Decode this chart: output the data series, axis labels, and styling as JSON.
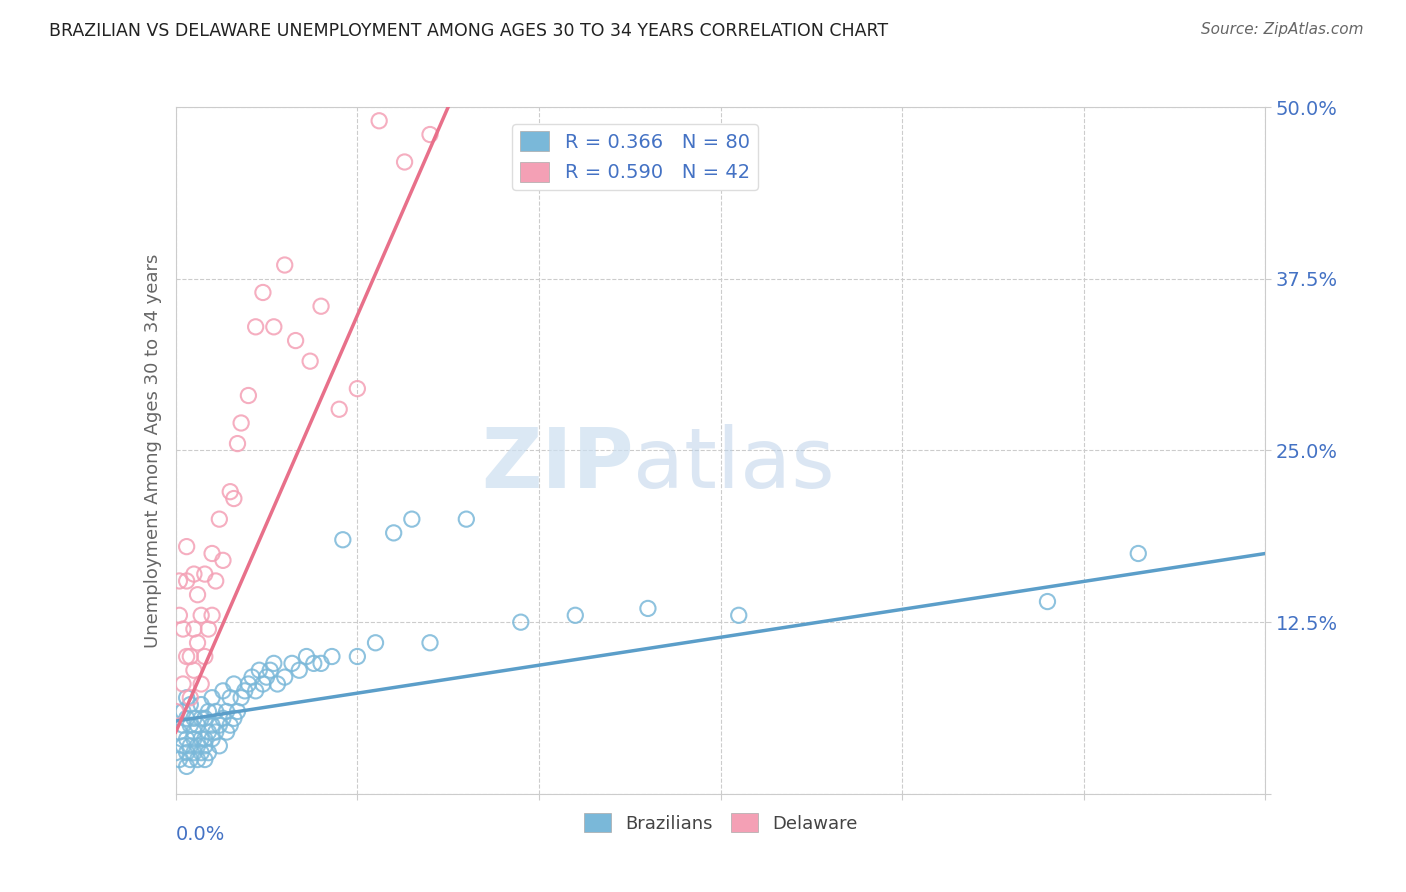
{
  "title": "BRAZILIAN VS DELAWARE UNEMPLOYMENT AMONG AGES 30 TO 34 YEARS CORRELATION CHART",
  "source": "Source: ZipAtlas.com",
  "ylabel_label": "Unemployment Among Ages 30 to 34 years",
  "legend_r1": "R = 0.366",
  "legend_n1": "N = 80",
  "legend_r2": "R = 0.590",
  "legend_n2": "N = 42",
  "watermark_zip": "ZIP",
  "watermark_atlas": "atlas",
  "color_blue": "#7ab8d9",
  "color_pink": "#f4a0b5",
  "color_blue_line": "#5b9ec9",
  "color_pink_line": "#e8708a",
  "xlim": [
    0.0,
    0.3
  ],
  "ylim": [
    0.0,
    0.5
  ],
  "blue_x": [
    0.0,
    0.001,
    0.001,
    0.002,
    0.002,
    0.002,
    0.003,
    0.003,
    0.003,
    0.003,
    0.003,
    0.004,
    0.004,
    0.004,
    0.004,
    0.005,
    0.005,
    0.005,
    0.005,
    0.006,
    0.006,
    0.006,
    0.007,
    0.007,
    0.007,
    0.007,
    0.008,
    0.008,
    0.008,
    0.008,
    0.009,
    0.009,
    0.009,
    0.01,
    0.01,
    0.01,
    0.011,
    0.011,
    0.012,
    0.012,
    0.013,
    0.013,
    0.014,
    0.014,
    0.015,
    0.015,
    0.016,
    0.016,
    0.017,
    0.018,
    0.019,
    0.02,
    0.021,
    0.022,
    0.023,
    0.024,
    0.025,
    0.026,
    0.027,
    0.028,
    0.03,
    0.032,
    0.034,
    0.036,
    0.038,
    0.04,
    0.043,
    0.046,
    0.05,
    0.055,
    0.06,
    0.065,
    0.07,
    0.08,
    0.095,
    0.11,
    0.13,
    0.155,
    0.24,
    0.265
  ],
  "blue_y": [
    0.03,
    0.025,
    0.045,
    0.035,
    0.05,
    0.06,
    0.03,
    0.04,
    0.055,
    0.07,
    0.02,
    0.035,
    0.05,
    0.065,
    0.025,
    0.04,
    0.055,
    0.03,
    0.045,
    0.035,
    0.05,
    0.025,
    0.04,
    0.055,
    0.03,
    0.065,
    0.04,
    0.025,
    0.055,
    0.035,
    0.045,
    0.06,
    0.03,
    0.05,
    0.04,
    0.07,
    0.045,
    0.06,
    0.05,
    0.035,
    0.055,
    0.075,
    0.045,
    0.06,
    0.05,
    0.07,
    0.055,
    0.08,
    0.06,
    0.07,
    0.075,
    0.08,
    0.085,
    0.075,
    0.09,
    0.08,
    0.085,
    0.09,
    0.095,
    0.08,
    0.085,
    0.095,
    0.09,
    0.1,
    0.095,
    0.095,
    0.1,
    0.185,
    0.1,
    0.11,
    0.19,
    0.2,
    0.11,
    0.2,
    0.125,
    0.13,
    0.135,
    0.13,
    0.14,
    0.175
  ],
  "pink_x": [
    0.0,
    0.001,
    0.001,
    0.002,
    0.002,
    0.003,
    0.003,
    0.003,
    0.004,
    0.004,
    0.005,
    0.005,
    0.005,
    0.006,
    0.006,
    0.007,
    0.007,
    0.008,
    0.008,
    0.009,
    0.01,
    0.01,
    0.011,
    0.012,
    0.013,
    0.015,
    0.016,
    0.017,
    0.018,
    0.02,
    0.022,
    0.024,
    0.027,
    0.03,
    0.033,
    0.037,
    0.04,
    0.045,
    0.05,
    0.056,
    0.063,
    0.07
  ],
  "pink_y": [
    0.06,
    0.13,
    0.155,
    0.08,
    0.12,
    0.1,
    0.155,
    0.18,
    0.07,
    0.1,
    0.09,
    0.12,
    0.16,
    0.11,
    0.145,
    0.08,
    0.13,
    0.1,
    0.16,
    0.12,
    0.13,
    0.175,
    0.155,
    0.2,
    0.17,
    0.22,
    0.215,
    0.255,
    0.27,
    0.29,
    0.34,
    0.365,
    0.34,
    0.385,
    0.33,
    0.315,
    0.355,
    0.28,
    0.295,
    0.49,
    0.46,
    0.48
  ],
  "pink_line_x_start": 0.0,
  "pink_line_x_end": 0.075,
  "blue_line_slope": 0.55,
  "blue_line_intercept": 0.055
}
